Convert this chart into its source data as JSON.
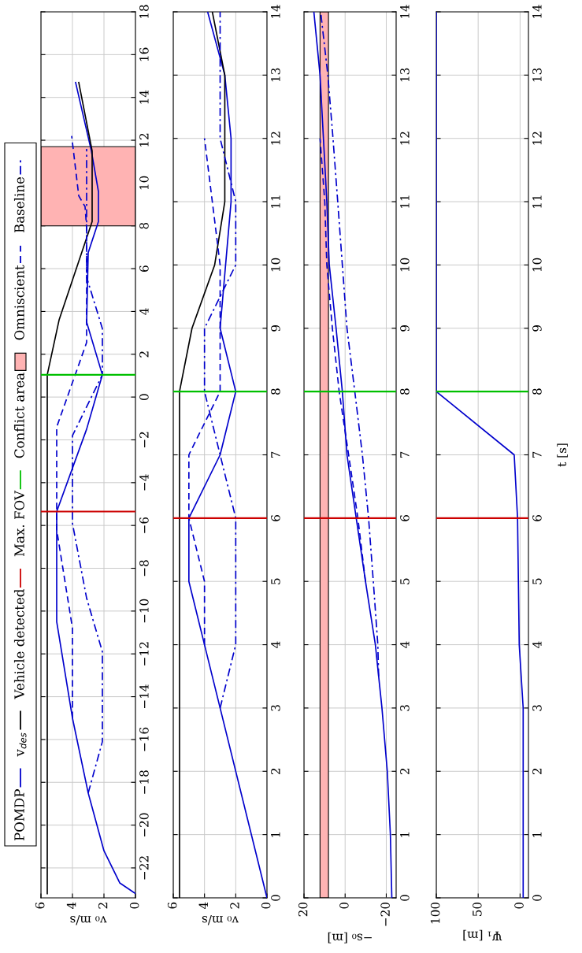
{
  "chart_data": [
    {
      "type": "line",
      "xlabel": "v₀ m/s",
      "ylim": [
        -23.4,
        18
      ],
      "yticks": [
        -22,
        -20,
        -18,
        -16,
        -14,
        -12,
        -10,
        -8,
        -6,
        -4,
        -2,
        0,
        2,
        4,
        6,
        8,
        10,
        12,
        14,
        16,
        18
      ],
      "xlim": [
        6,
        0
      ],
      "xticks": [
        0,
        2,
        4,
        6
      ],
      "grid": true,
      "legend": "left",
      "series": [
        {
          "name": "POMDP",
          "color": "#0000cc",
          "line_style": "solid",
          "values": [
            -23.2,
            -22.7,
            -21.2,
            -18.5,
            -15.0,
            -10.5,
            -5.35,
            -1.5,
            1.04,
            3.5,
            6.75,
            8.2,
            9.6,
            11.5,
            14.7
          ],
          "x": [
            0,
            1,
            2,
            3,
            4,
            5,
            5,
            3.1,
            2.1,
            3.1,
            3,
            2.35,
            2.35,
            2.8,
            3.8
          ]
        },
        {
          "name": "v$_{des}$",
          "color": "#000000",
          "line_style": "solid",
          "values": [
            -23.2,
            1.04,
            3.6,
            8.2,
            11.5,
            14.7
          ],
          "x": [
            5.6,
            5.6,
            4.85,
            2.75,
            2.75,
            3.6
          ]
        },
        {
          "name": "Omniscient",
          "color": "#0000cc",
          "line_style": "dashed",
          "values": [
            -15.0,
            -10.8,
            -6.2,
            -1.4,
            2.55,
            7.9,
            8.9,
            9.4,
            12.2
          ],
          "x": [
            4,
            4,
            5,
            5,
            3.1,
            3.1,
            3.2,
            3.6,
            4.05
          ]
        },
        {
          "name": "Baseline",
          "color": "#0000cc",
          "line_style": "dashdot",
          "values": [
            -18.5,
            -16.1,
            -11.9,
            -9.4,
            -5.9,
            -1.8,
            1.04,
            3.2,
            5.6,
            11.6
          ],
          "x": [
            3,
            2.1,
            2.1,
            3.1,
            4,
            4,
            2.1,
            2.1,
            3.1,
            3.1
          ]
        }
      ],
      "ref_lines": [
        {
          "axis": "y",
          "value": -5.35,
          "label": "Vehicle detected",
          "color": "#cc0000"
        },
        {
          "axis": "y",
          "value": 1.04,
          "label": "Max. FOV",
          "color": "#00c000"
        }
      ],
      "bands": [
        {
          "axis": "y",
          "from": 8.0,
          "to": 11.7,
          "label": "Conflict area",
          "color": "#ffb3b3"
        }
      ]
    },
    {
      "type": "line",
      "xlabel": "v₀ m/s",
      "ylim": [
        0,
        14
      ],
      "yticks": [
        0,
        1,
        2,
        3,
        4,
        5,
        6,
        7,
        8,
        9,
        10,
        11,
        12,
        13,
        14
      ],
      "xlim": [
        6,
        0
      ],
      "xticks": [
        0,
        2,
        4,
        6
      ],
      "grid": true,
      "series": [
        {
          "color": "#0000cc",
          "line_style": "solid",
          "values": [
            0,
            5,
            6,
            7,
            8,
            9,
            11,
            12,
            13,
            14
          ],
          "x": [
            0,
            5,
            5,
            3,
            2,
            3,
            2.3,
            2.3,
            2.7,
            3.8
          ]
        },
        {
          "color": "#000000",
          "line_style": "solid",
          "values": [
            0,
            8,
            9,
            10,
            11,
            13,
            14
          ],
          "x": [
            5.6,
            5.6,
            4.8,
            3.35,
            2.7,
            2.7,
            3.5
          ]
        },
        {
          "color": "#0000cc",
          "line_style": "dashed",
          "values": [
            4,
            5,
            6,
            7,
            8,
            10,
            12
          ],
          "x": [
            4,
            4,
            5,
            5,
            3,
            3,
            4
          ]
        },
        {
          "color": "#0000cc",
          "line_style": "dashdot",
          "values": [
            3,
            4,
            6,
            8,
            9,
            10,
            11,
            12,
            14
          ],
          "x": [
            3,
            2,
            2,
            4,
            4,
            2,
            2,
            3,
            3
          ]
        }
      ],
      "ref_lines": [
        {
          "axis": "y",
          "value": 6,
          "color": "#cc0000"
        },
        {
          "axis": "y",
          "value": 8,
          "color": "#00c000"
        }
      ]
    },
    {
      "type": "line",
      "xlabel": "−s₀ [m]",
      "ylim": [
        0,
        14
      ],
      "yticks": [
        0,
        1,
        2,
        3,
        4,
        5,
        6,
        7,
        8,
        9,
        10,
        11,
        12,
        13,
        14
      ],
      "xlim": [
        20,
        -24.8
      ],
      "xticks": [
        -20,
        0,
        20
      ],
      "grid": true,
      "series": [
        {
          "color": "#0000cc",
          "line_style": "solid",
          "values": [
            0,
            1,
            2,
            3,
            4,
            5,
            6,
            7,
            8,
            9,
            10,
            11,
            13,
            14
          ],
          "x": [
            -22.7,
            -22,
            -20.5,
            -17.9,
            -14.7,
            -9.9,
            -5.4,
            -0.9,
            1.35,
            4.4,
            7.7,
            8.9,
            12.2,
            15.2
          ]
        },
        {
          "color": "#0000cc",
          "line_style": "dashed",
          "values": [
            5,
            6,
            7,
            8,
            9,
            10,
            11,
            12
          ],
          "x": [
            -9.9,
            -6.2,
            -1.7,
            2.9,
            6.2,
            8.9,
            9.9,
            12.2
          ]
        },
        {
          "color": "#0000cc",
          "line_style": "dashdot",
          "values": [
            3.5,
            4,
            5,
            6,
            7,
            8,
            9,
            10,
            11,
            12,
            13,
            14
          ],
          "x": [
            -16.3,
            -15.9,
            -13.7,
            -11.4,
            -8.4,
            -4.7,
            -0.9,
            1.35,
            3.6,
            5.9,
            8.4,
            11.9
          ]
        }
      ],
      "ref_lines": [
        {
          "axis": "y",
          "value": 6,
          "color": "#cc0000"
        },
        {
          "axis": "y",
          "value": 8,
          "color": "#00c000"
        }
      ],
      "bands": [
        {
          "axis": "x",
          "from": 8.1,
          "to": 12.2,
          "color": "#ffb3b3"
        }
      ]
    },
    {
      "type": "line",
      "ylabel": "t [s]",
      "xlabel": "Ψ₁ [m]",
      "ylim": [
        0,
        14
      ],
      "yticks": [
        0,
        1,
        2,
        3,
        4,
        5,
        6,
        7,
        8,
        9,
        10,
        11,
        12,
        13,
        14
      ],
      "xlim": [
        100,
        -10
      ],
      "xticks": [
        0,
        50,
        100
      ],
      "grid": true,
      "series": [
        {
          "color": "#0000cc",
          "line_style": "solid",
          "values": [
            0,
            3,
            4,
            5,
            6,
            7,
            8,
            14
          ],
          "x": [
            -3.7,
            -3.7,
            1,
            2,
            3,
            7,
            100,
            100
          ]
        }
      ],
      "ref_lines": [
        {
          "axis": "y",
          "value": 6,
          "color": "#cc0000"
        },
        {
          "axis": "y",
          "value": 8,
          "color": "#00c000"
        }
      ]
    }
  ]
}
